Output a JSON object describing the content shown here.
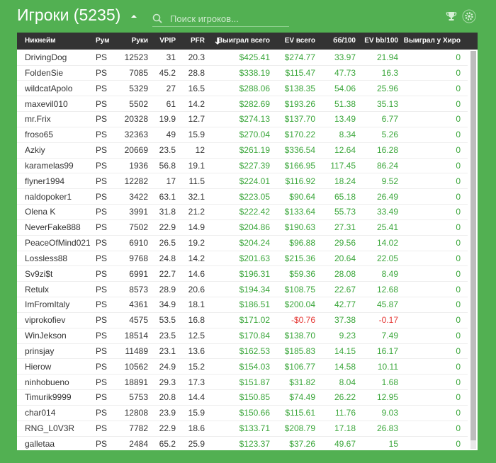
{
  "header": {
    "title": "Игроки (5235)",
    "search_placeholder": "Поиск игроков..."
  },
  "table": {
    "columns": [
      "Никнейм",
      "Рум",
      "Руки",
      "VPIP",
      "PFR",
      "Выиграл всего",
      "EV всего",
      "бб/100",
      "EV bb/100",
      "Выиграл у Хиро"
    ],
    "rows": [
      [
        "DrivingDog",
        "PS",
        "12523",
        "31",
        "20.3",
        "$425.41",
        "$274.77",
        "33.97",
        "21.94",
        "0"
      ],
      [
        "FoldenSie",
        "PS",
        "7085",
        "45.2",
        "28.8",
        "$338.19",
        "$115.47",
        "47.73",
        "16.3",
        "0"
      ],
      [
        "wildcatApolo",
        "PS",
        "5329",
        "27",
        "16.5",
        "$288.06",
        "$138.35",
        "54.06",
        "25.96",
        "0"
      ],
      [
        "maxevil010",
        "PS",
        "5502",
        "61",
        "14.2",
        "$282.69",
        "$193.26",
        "51.38",
        "35.13",
        "0"
      ],
      [
        "mr.Frix",
        "PS",
        "20328",
        "19.9",
        "12.7",
        "$274.13",
        "$137.70",
        "13.49",
        "6.77",
        "0"
      ],
      [
        "froso65",
        "PS",
        "32363",
        "49",
        "15.9",
        "$270.04",
        "$170.22",
        "8.34",
        "5.26",
        "0"
      ],
      [
        "Azkiy",
        "PS",
        "20669",
        "23.5",
        "12",
        "$261.19",
        "$336.54",
        "12.64",
        "16.28",
        "0"
      ],
      [
        "karamelas99",
        "PS",
        "1936",
        "56.8",
        "19.1",
        "$227.39",
        "$166.95",
        "117.45",
        "86.24",
        "0"
      ],
      [
        "flyner1994",
        "PS",
        "12282",
        "17",
        "11.5",
        "$224.01",
        "$116.92",
        "18.24",
        "9.52",
        "0"
      ],
      [
        "naldopoker1",
        "PS",
        "3422",
        "63.1",
        "32.1",
        "$223.05",
        "$90.64",
        "65.18",
        "26.49",
        "0"
      ],
      [
        "Olena K",
        "PS",
        "3991",
        "31.8",
        "21.2",
        "$222.42",
        "$133.64",
        "55.73",
        "33.49",
        "0"
      ],
      [
        "NeverFake888",
        "PS",
        "7502",
        "22.9",
        "14.9",
        "$204.86",
        "$190.63",
        "27.31",
        "25.41",
        "0"
      ],
      [
        "PeaceOfMind021",
        "PS",
        "6910",
        "26.5",
        "19.2",
        "$204.24",
        "$96.88",
        "29.56",
        "14.02",
        "0"
      ],
      [
        "Lossless88",
        "PS",
        "9768",
        "24.8",
        "14.2",
        "$201.63",
        "$215.36",
        "20.64",
        "22.05",
        "0"
      ],
      [
        "Sv9zi$t",
        "PS",
        "6991",
        "22.7",
        "14.6",
        "$196.31",
        "$59.36",
        "28.08",
        "8.49",
        "0"
      ],
      [
        "Retulx",
        "PS",
        "8573",
        "28.9",
        "20.6",
        "$194.34",
        "$108.75",
        "22.67",
        "12.68",
        "0"
      ],
      [
        "ImFromItaly",
        "PS",
        "4361",
        "34.9",
        "18.1",
        "$186.51",
        "$200.04",
        "42.77",
        "45.87",
        "0"
      ],
      [
        "viprokofiev",
        "PS",
        "4575",
        "53.5",
        "16.8",
        "$171.02",
        "-$0.76",
        "37.38",
        "-0.17",
        "0"
      ],
      [
        "WinJekson",
        "PS",
        "18514",
        "23.5",
        "12.5",
        "$170.84",
        "$138.70",
        "9.23",
        "7.49",
        "0"
      ],
      [
        "prinsjay",
        "PS",
        "11489",
        "23.1",
        "13.6",
        "$162.53",
        "$185.83",
        "14.15",
        "16.17",
        "0"
      ],
      [
        "Hierow",
        "PS",
        "10562",
        "24.9",
        "15.2",
        "$154.03",
        "$106.77",
        "14.58",
        "10.11",
        "0"
      ],
      [
        "ninhobueno",
        "PS",
        "18891",
        "29.3",
        "17.3",
        "$151.87",
        "$31.82",
        "8.04",
        "1.68",
        "0"
      ],
      [
        "Timurik9999",
        "PS",
        "5753",
        "20.8",
        "14.4",
        "$150.85",
        "$74.49",
        "26.22",
        "12.95",
        "0"
      ],
      [
        "char014",
        "PS",
        "12808",
        "23.9",
        "15.9",
        "$150.66",
        "$115.61",
        "11.76",
        "9.03",
        "0"
      ],
      [
        "RNG_L0V3R",
        "PS",
        "7782",
        "22.9",
        "18.6",
        "$133.71",
        "$208.79",
        "17.18",
        "26.83",
        "0"
      ],
      [
        "galletaa",
        "PS",
        "2484",
        "65.2",
        "25.9",
        "$123.37",
        "$37.26",
        "49.67",
        "15",
        "0"
      ]
    ]
  }
}
